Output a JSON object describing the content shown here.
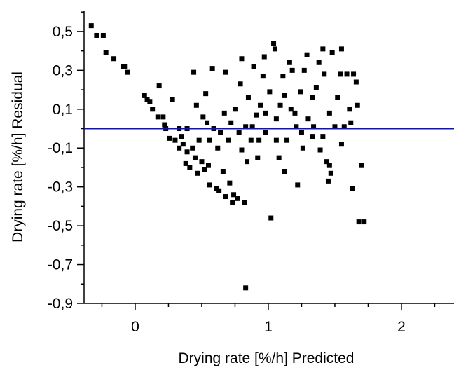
{
  "chart_data": {
    "type": "scatter",
    "xlabel": "Drying rate [%/h] Predicted",
    "ylabel": "Drying rate [%/h] Residual",
    "xlim": [
      -0.384,
      2.395
    ],
    "ylim": [
      -0.9,
      0.608
    ],
    "xticks": [
      0,
      1,
      2
    ],
    "xminor_ticks": [
      -0.25,
      0.25,
      0.5,
      0.75,
      1.25,
      1.5,
      1.75,
      2.25
    ],
    "yticks": [
      {
        "value": 0.5,
        "label": "0,5"
      },
      {
        "value": 0.3,
        "label": "0,3"
      },
      {
        "value": 0.1,
        "label": "0,1"
      },
      {
        "value": -0.1,
        "label": "-0,1"
      },
      {
        "value": -0.3,
        "label": "-0,3"
      },
      {
        "value": -0.5,
        "label": "-0,5"
      },
      {
        "value": -0.7,
        "label": "-0,7"
      },
      {
        "value": -0.9,
        "label": "-0,9"
      }
    ],
    "yminor_ticks": [
      0.6,
      0.4,
      0.2,
      0,
      -0.2,
      -0.4,
      -0.6,
      -0.8
    ],
    "reference_line": {
      "value": 0,
      "color": "#1010cc"
    },
    "color": "#000000",
    "x": [
      -0.33,
      -0.29,
      -0.24,
      -0.22,
      -0.16,
      -0.09,
      -0.08,
      -0.06,
      0.07,
      0.09,
      0.11,
      0.13,
      0.18,
      0.17,
      0.21,
      0.22,
      0.23,
      0.28,
      0.26,
      0.3,
      0.33,
      0.36,
      0.39,
      0.39,
      0.43,
      0.44,
      0.38,
      0.41,
      0.45,
      0.47,
      0.5,
      0.51,
      0.53,
      0.52,
      0.55,
      0.56,
      0.58,
      0.59,
      0.61,
      0.63,
      0.66,
      0.68,
      0.68,
      0.71,
      0.73,
      0.74,
      0.77,
      0.8,
      0.82,
      0.83,
      0.62,
      0.64,
      0.67,
      0.7,
      0.72,
      0.75,
      0.78,
      0.8,
      0.83,
      0.85,
      0.87,
      0.89,
      0.91,
      0.92,
      0.94,
      0.96,
      0.97,
      0.98,
      1.01,
      1.02,
      1.04,
      1.05,
      1.06,
      1.08,
      1.09,
      1.11,
      1.12,
      1.14,
      1.16,
      1.17,
      1.18,
      1.21,
      1.22,
      1.24,
      1.26,
      1.27,
      1.29,
      1.3,
      1.33,
      1.34,
      1.36,
      1.38,
      1.39,
      1.41,
      1.42,
      1.44,
      1.45,
      1.46,
      1.47,
      1.48,
      1.5,
      1.52,
      1.54,
      1.55,
      1.55,
      1.57,
      1.59,
      1.61,
      1.63,
      1.64,
      1.66,
      1.68,
      1.7,
      1.72,
      0.46,
      0.48,
      0.54,
      0.56,
      0.79,
      0.84,
      0.88,
      0.93,
      0.98,
      1.06,
      1.12,
      1.2,
      1.25,
      1.33,
      1.41,
      1.46,
      1.62,
      1.67,
      0.33,
      0.35
    ],
    "y": [
      0.53,
      0.48,
      0.48,
      0.39,
      0.36,
      0.32,
      0.32,
      0.29,
      0.17,
      0.15,
      0.14,
      0.1,
      0.22,
      0.06,
      0.06,
      0.02,
      0,
      0.15,
      -0.05,
      -0.06,
      -0.1,
      -0.08,
      0,
      -0.12,
      -0.1,
      0.29,
      -0.18,
      -0.2,
      -0.15,
      -0.23,
      -0.17,
      0.06,
      0.18,
      -0.21,
      -0.19,
      -0.29,
      0.31,
      0,
      -0.31,
      -0.32,
      -0.22,
      0.29,
      -0.35,
      -0.28,
      -0.38,
      -0.34,
      -0.36,
      0.36,
      -0.38,
      -0.82,
      -0.1,
      -0.02,
      0.08,
      -0.06,
      0.03,
      0.1,
      -0.02,
      -0.11,
      0.01,
      0.16,
      -0.06,
      0.32,
      0.07,
      -0.15,
      0.12,
      0.27,
      0.37,
      -0.02,
      0.19,
      -0.46,
      0.44,
      0.41,
      0.05,
      -0.15,
      0.12,
      0.27,
      -0.22,
      -0.06,
      0.34,
      0.1,
      0.3,
      0.01,
      -0.29,
      0.19,
      -0.1,
      0.3,
      0.38,
      0.05,
      0.16,
      0.01,
      0.21,
      0.34,
      -0.11,
      0.41,
      0.28,
      -0.17,
      -0.27,
      0.08,
      -0.23,
      0.39,
      0.01,
      0.16,
      0.28,
      -0.08,
      0.41,
      0.01,
      0.28,
      0.1,
      -0.31,
      0.28,
      0.24,
      -0.48,
      -0.19,
      -0.48,
      0.12,
      -0.06,
      0.03,
      -0.06,
      0.23,
      -0.17,
      0.01,
      -0.06,
      0.08,
      -0.06,
      0.17,
      0.08,
      -0.02,
      -0.04,
      -0.04,
      -0.19,
      0.03,
      0.12,
      0,
      -0.04
    ]
  }
}
